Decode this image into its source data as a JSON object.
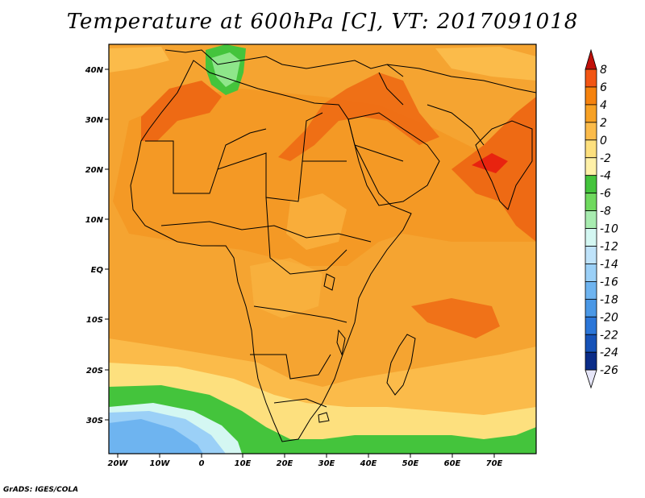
{
  "title": "Temperature at 600hPa [C], VT: 2017091018",
  "footer": "GrADS: IGES/COLA",
  "lon_labels": [
    "20W",
    "10W",
    "0",
    "10E",
    "20E",
    "30E",
    "40E",
    "50E",
    "60E",
    "70E"
  ],
  "lat_labels": [
    "40N",
    "30N",
    "20N",
    "10N",
    "EQ",
    "10S",
    "20S",
    "30S"
  ],
  "colorbar": {
    "labels": [
      "8",
      "6",
      "4",
      "2",
      "0",
      "-2",
      "-4",
      "-6",
      "-8",
      "-10",
      "-12",
      "-14",
      "-16",
      "-18",
      "-20",
      "-22",
      "-24",
      "-26"
    ],
    "colors": [
      "#e8230f",
      "#f25513",
      "#f5820e",
      "#f7a124",
      "#fbbb4a",
      "#fde07e",
      "#fff1a8",
      "#44c43c",
      "#6fd95e",
      "#a8ecb0",
      "#d4f7f2",
      "#bfe3fa",
      "#9bd0f7",
      "#6eb4f0",
      "#4a98e6",
      "#2b76d8",
      "#1652b8",
      "#0a2c88",
      "#060e50"
    ],
    "top_color": "#c0100a",
    "bottom_color": "#e6e6f8"
  },
  "legend_colors": {
    "ocean_warm": "#f5a431",
    "land_main": "#f39522",
    "hot": "#ee6a14",
    "cool_band": "#fbbb4a",
    "pale": "#fde07e",
    "green": "#44c43c",
    "light_green": "#8ee68a",
    "blue_light": "#9bd0f7",
    "blue_mid": "#6eb4f0"
  }
}
